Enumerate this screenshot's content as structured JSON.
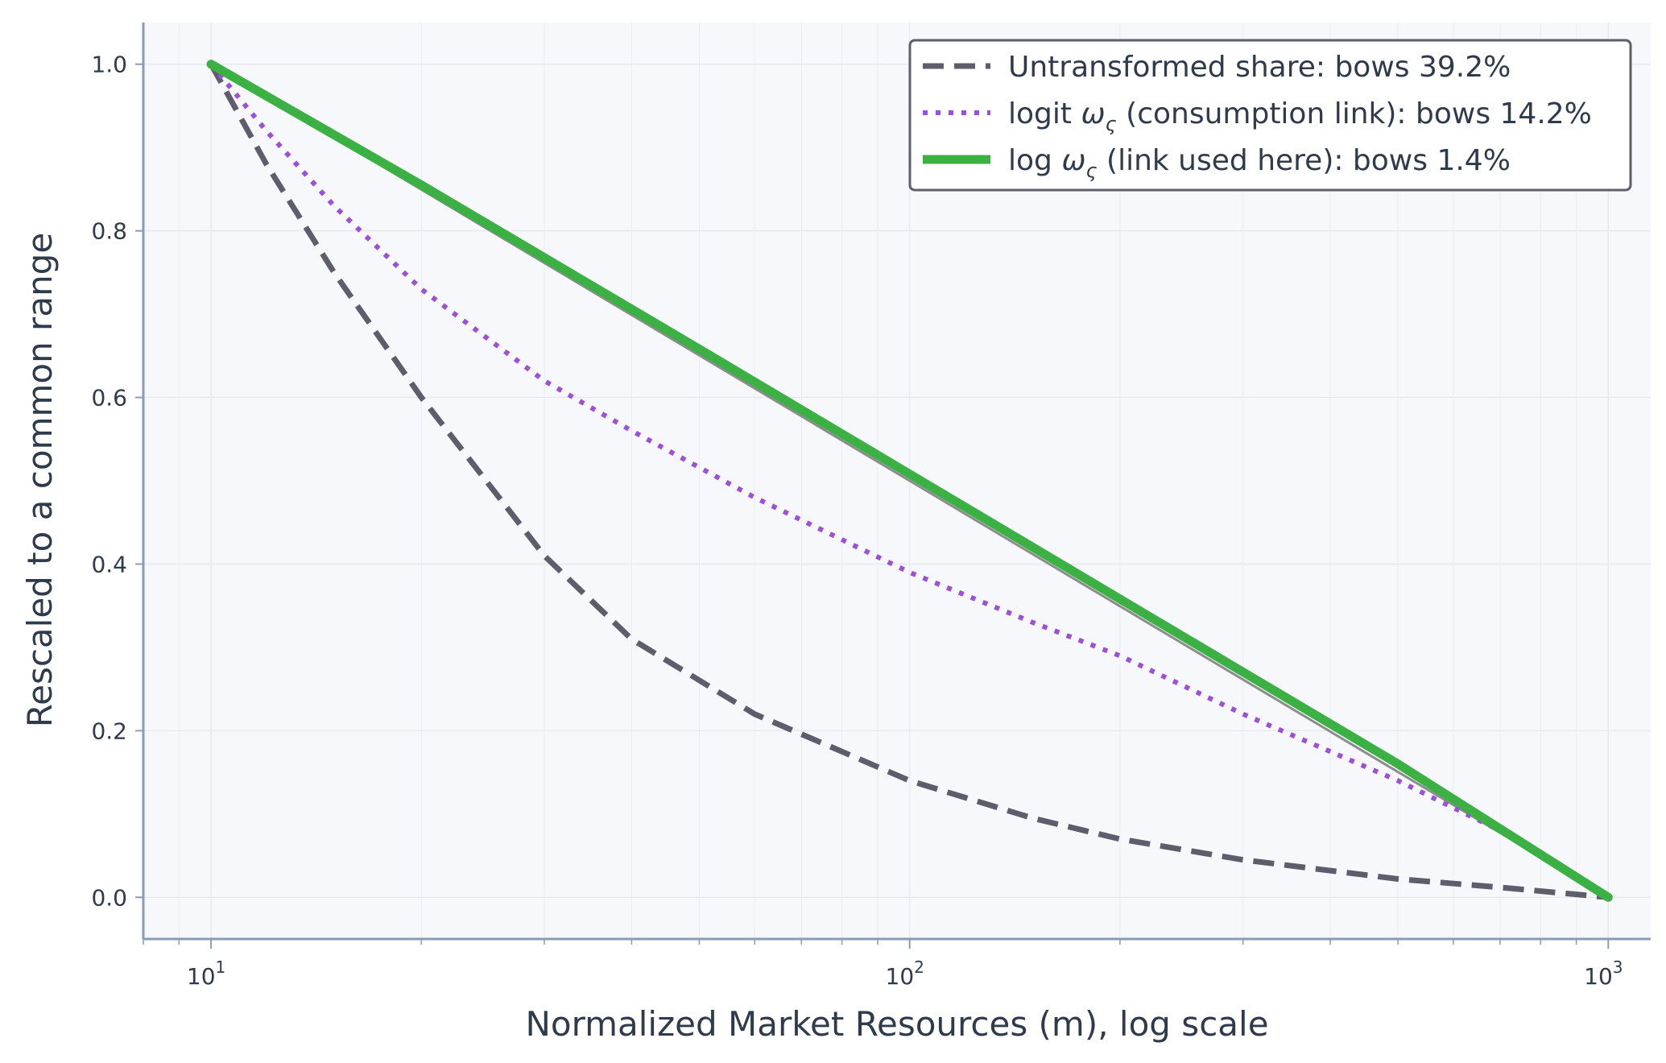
{
  "chart_data": {
    "type": "line",
    "xlabel": "Normalized Market Resources (m), log scale",
    "ylabel": "Rescaled to a common range",
    "xscale": "log",
    "xlim": [
      8,
      1150
    ],
    "ylim": [
      -0.05,
      1.05
    ],
    "x_ticks": [
      10,
      100,
      1000
    ],
    "x_tick_labels": [
      "10",
      "10",
      "10"
    ],
    "x_tick_exponents": [
      "1",
      "2",
      "3"
    ],
    "y_ticks": [
      "1.0",
      "0.8",
      "0.6",
      "0.4",
      "0.2",
      "0.0"
    ],
    "grid": true,
    "legend_position": "top-right",
    "colors": {
      "background": "#f6f8fb",
      "axis": "#8a9bb3",
      "grid": "#e6eaf0",
      "untransformed": "#5f5d6b",
      "logit": "#9b4fdc",
      "log": "#3bb143",
      "reference": "#8c8c8c",
      "text": "#2f3b4d",
      "legend_border": "#5f5d6b"
    },
    "series": [
      {
        "name": "Untransformed share: bows 39.2%",
        "style": "dashed",
        "x": [
          10,
          12,
          15,
          20,
          30,
          40,
          60,
          100,
          150,
          200,
          300,
          500,
          700,
          1000
        ],
        "y": [
          1.0,
          0.88,
          0.75,
          0.6,
          0.41,
          0.31,
          0.22,
          0.14,
          0.095,
          0.07,
          0.045,
          0.022,
          0.012,
          0.0
        ]
      },
      {
        "name": "logit ω_ς (consumption link): bows 14.2%",
        "name_parts": [
          "logit ",
          "ω",
          "ς",
          " (consumption link): bows 14.2%"
        ],
        "style": "dotted",
        "x": [
          10,
          12,
          15,
          20,
          30,
          40,
          60,
          100,
          150,
          200,
          300,
          500,
          700,
          1000
        ],
        "y": [
          1.0,
          0.92,
          0.83,
          0.73,
          0.62,
          0.56,
          0.48,
          0.39,
          0.33,
          0.29,
          0.22,
          0.14,
          0.08,
          0.0
        ]
      },
      {
        "name": "log ω_ς (link used here): bows 1.4%",
        "name_parts": [
          "log ",
          "ω",
          "ς",
          " (link used here): bows 1.4%"
        ],
        "style": "solid-thick",
        "x": [
          10,
          20,
          50,
          100,
          200,
          500,
          1000
        ],
        "y": [
          1.0,
          0.855,
          0.658,
          0.508,
          0.358,
          0.16,
          0.0
        ]
      },
      {
        "style": "reference",
        "x": [
          10,
          1000
        ],
        "y": [
          1.0,
          0.0
        ]
      }
    ]
  }
}
